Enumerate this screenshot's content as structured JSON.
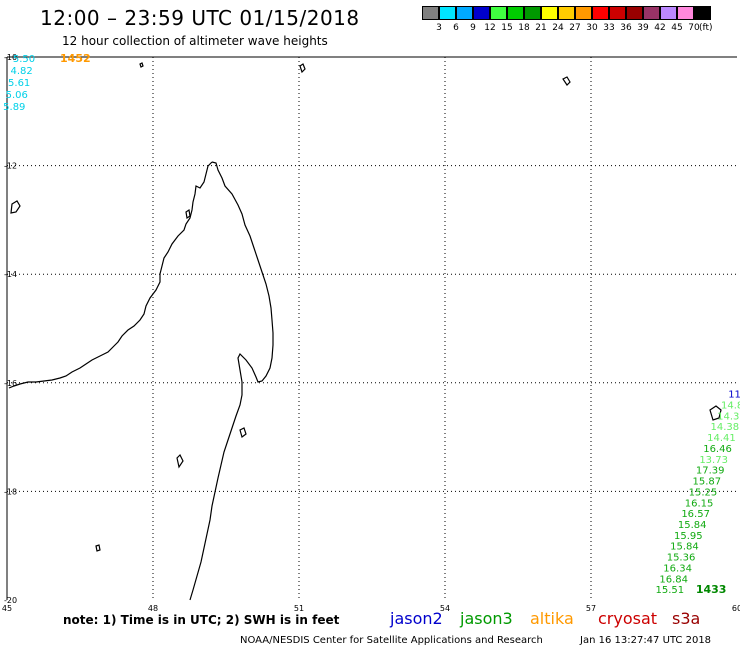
{
  "header": {
    "title": "12:00 – 23:59 UTC 01/15/2018",
    "subtitle": "12 hour collection of altimeter wave heights"
  },
  "colorbar": {
    "unit": "(ft)",
    "bins": [
      {
        "label": "3",
        "color": "#808080"
      },
      {
        "label": "6",
        "color": "#00e5ff"
      },
      {
        "label": "9",
        "color": "#00aaff"
      },
      {
        "label": "12",
        "color": "#0000cd"
      },
      {
        "label": "15",
        "color": "#40ff40"
      },
      {
        "label": "18",
        "color": "#00cc00"
      },
      {
        "label": "21",
        "color": "#009900"
      },
      {
        "label": "24",
        "color": "#ffff00"
      },
      {
        "label": "27",
        "color": "#ffcc00"
      },
      {
        "label": "30",
        "color": "#ff9900"
      },
      {
        "label": "33",
        "color": "#ff0000"
      },
      {
        "label": "36",
        "color": "#cc0000"
      },
      {
        "label": "39",
        "color": "#990000"
      },
      {
        "label": "42",
        "color": "#993366"
      },
      {
        "label": "45",
        "color": "#bb88ff"
      },
      {
        "label": "70",
        "color": "#ff88dd"
      },
      {
        "label": "",
        "color": "#000000"
      }
    ]
  },
  "axes": {
    "lon_ticks": [
      "45",
      "48",
      "51",
      "54",
      "57",
      "60"
    ],
    "lat_ticks": [
      "-10",
      "-12",
      "-14",
      "-16",
      "-18",
      "-20"
    ]
  },
  "tracks": [
    {
      "satellite": "altika",
      "pass_time": "1452",
      "pass_time_color": "#ff9900",
      "points": [
        {
          "text": "5.50",
          "color": "#00d0e8",
          "lon": 45.35,
          "lat": -10.02
        },
        {
          "text": "4.82",
          "color": "#00d0e8",
          "lon": 45.3,
          "lat": -10.24
        },
        {
          "text": "5.61",
          "color": "#00d0e8",
          "lon": 45.25,
          "lat": -10.46
        },
        {
          "text": "5.06",
          "color": "#00d0e8",
          "lon": 45.2,
          "lat": -10.68
        },
        {
          "text": "5.89",
          "color": "#00d0e8",
          "lon": 45.15,
          "lat": -10.9
        }
      ]
    },
    {
      "satellite": "jason3",
      "pass_time": "1433",
      "pass_time_color": "#008800",
      "points": [
        {
          "text": "11",
          "color": "#0000cc",
          "lon": 59.95,
          "lat": -16.2
        },
        {
          "text": "14.8",
          "color": "#66ee66",
          "lon": 59.9,
          "lat": -16.4
        },
        {
          "text": "14.3",
          "color": "#66ee66",
          "lon": 59.82,
          "lat": -16.6
        },
        {
          "text": "14.38",
          "color": "#66ee66",
          "lon": 59.75,
          "lat": -16.8
        },
        {
          "text": "14.41",
          "color": "#66ee66",
          "lon": 59.68,
          "lat": -17.0
        },
        {
          "text": "16.46",
          "color": "#11aa11",
          "lon": 59.6,
          "lat": -17.2
        },
        {
          "text": "13.73",
          "color": "#66ee66",
          "lon": 59.52,
          "lat": -17.4
        },
        {
          "text": "17.39",
          "color": "#11aa11",
          "lon": 59.45,
          "lat": -17.6
        },
        {
          "text": "15.87",
          "color": "#11aa11",
          "lon": 59.38,
          "lat": -17.8
        },
        {
          "text": "15.25",
          "color": "#11aa11",
          "lon": 59.3,
          "lat": -18.0
        },
        {
          "text": "16.15",
          "color": "#11aa11",
          "lon": 59.22,
          "lat": -18.2
        },
        {
          "text": "16.57",
          "color": "#11aa11",
          "lon": 59.15,
          "lat": -18.4
        },
        {
          "text": "15.84",
          "color": "#11aa11",
          "lon": 59.08,
          "lat": -18.6
        },
        {
          "text": "15.95",
          "color": "#11aa11",
          "lon": 59.0,
          "lat": -18.8
        },
        {
          "text": "15.84",
          "color": "#11aa11",
          "lon": 58.92,
          "lat": -19.0
        },
        {
          "text": "15.36",
          "color": "#11aa11",
          "lon": 58.85,
          "lat": -19.2
        },
        {
          "text": "16.34",
          "color": "#11aa11",
          "lon": 58.78,
          "lat": -19.4
        },
        {
          "text": "16.84",
          "color": "#11aa11",
          "lon": 58.7,
          "lat": -19.6
        },
        {
          "text": "15.51",
          "color": "#11aa11",
          "lon": 58.62,
          "lat": -19.8
        }
      ]
    }
  ],
  "footer": {
    "note": "note: 1) Time is in UTC; 2) SWH is in feet",
    "satellites": [
      {
        "name": "jason2",
        "color": "#0000cc"
      },
      {
        "name": "jason3",
        "color": "#009900"
      },
      {
        "name": "altika",
        "color": "#ff9900"
      },
      {
        "name": "cryosat",
        "color": "#cc0000"
      },
      {
        "name": "s3a",
        "color": "#990000"
      }
    ],
    "credit": "NOAA/NESDIS Center for Satellite Applications and Research",
    "timestamp": "Jan 16 13:27:47 UTC 2018"
  }
}
